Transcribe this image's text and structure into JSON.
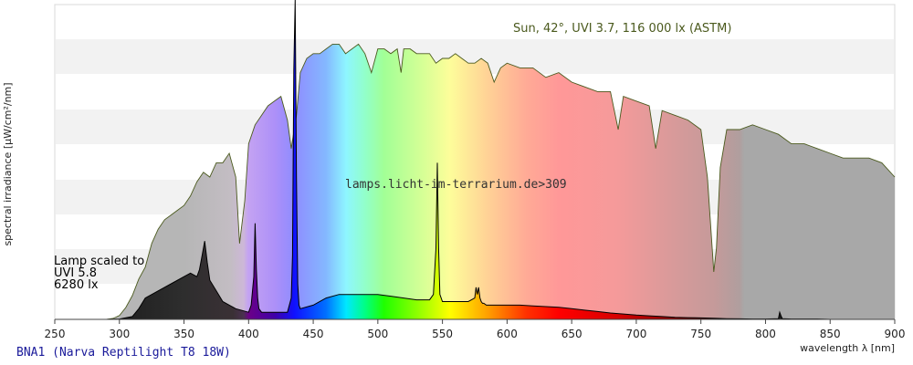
{
  "chart_data": {
    "type": "area",
    "title": "",
    "xlabel": "wavelength λ [nm]",
    "ylabel": "spectral irradiance [µW/cm²/nm]",
    "xlim": [
      250,
      900
    ],
    "x_ticks": [
      250,
      300,
      350,
      400,
      450,
      500,
      550,
      600,
      650,
      700,
      750,
      800,
      850,
      900
    ],
    "y_tick_labels": [],
    "grid": "horizontal bands",
    "colors": {
      "sun_line": "#4b5a1e",
      "lamp_fill": "#000000",
      "band": "#f2f2f2",
      "uv_gray": "#b0b0b0",
      "ir_gray": "#a8a8a8"
    },
    "annotations": {
      "sun": "Sun, 42°, UVI 3.7, 116 000 lx (ASTM)",
      "lamp": [
        "Lamp scaled to",
        "UVI 5.8",
        "6280 lx"
      ],
      "watermark": "lamps.licht-im-terrarium.de>309",
      "lamp_name": "BNA1 (Narva Reptilight T8 18W)"
    },
    "series": [
      {
        "name": "Sun, 42°, UVI 3.7, 116 000 lx (ASTM)",
        "x": [
          290,
          295,
          300,
          305,
          310,
          315,
          320,
          325,
          330,
          335,
          340,
          345,
          350,
          355,
          360,
          365,
          370,
          375,
          380,
          385,
          390,
          393,
          397,
          400,
          405,
          410,
          415,
          420,
          425,
          430,
          433,
          437,
          440,
          445,
          450,
          455,
          460,
          465,
          470,
          475,
          480,
          485,
          490,
          495,
          500,
          505,
          510,
          515,
          518,
          520,
          525,
          530,
          535,
          540,
          545,
          550,
          555,
          560,
          565,
          570,
          575,
          580,
          585,
          590,
          595,
          600,
          610,
          620,
          630,
          640,
          650,
          660,
          670,
          680,
          686,
          690,
          700,
          710,
          715,
          720,
          730,
          740,
          750,
          755,
          760,
          762,
          765,
          770,
          780,
          790,
          800,
          810,
          820,
          830,
          840,
          850,
          860,
          870,
          880,
          890,
          900
        ],
        "values": [
          0,
          0.2,
          0.8,
          2.5,
          5,
          8.5,
          11,
          16,
          19,
          21,
          22,
          23,
          24,
          26,
          29,
          31,
          30,
          33,
          33,
          35,
          30,
          16,
          25,
          37,
          41,
          43,
          45,
          46,
          47,
          42,
          36,
          43,
          52,
          55,
          56,
          56,
          57,
          58,
          58,
          56,
          57,
          58,
          56,
          52,
          57,
          57,
          56,
          57,
          52,
          57,
          57,
          56,
          56,
          56,
          54,
          55,
          55,
          56,
          55,
          54,
          54,
          55,
          54,
          50,
          53,
          54,
          53,
          53,
          51,
          52,
          50,
          49,
          48,
          48,
          40,
          47,
          46,
          45,
          36,
          44,
          43,
          42,
          40,
          30,
          10,
          15,
          32,
          40,
          40,
          41,
          40,
          39,
          37,
          37,
          36,
          35,
          34,
          34,
          34,
          33,
          30
        ]
      },
      {
        "name": "Lamp",
        "x": [
          290,
          300,
          310,
          315,
          320,
          330,
          340,
          350,
          355,
          360,
          362,
          364,
          366,
          368,
          370,
          375,
          380,
          390,
          400,
          402,
          404,
          405,
          406,
          407,
          408,
          410,
          420,
          430,
          433,
          434,
          435,
          436,
          437,
          438,
          439,
          440,
          450,
          460,
          470,
          480,
          490,
          500,
          510,
          520,
          530,
          540,
          543,
          545,
          546,
          547,
          548,
          550,
          560,
          570,
          575,
          576,
          577,
          578,
          579,
          580,
          581,
          582,
          584,
          590,
          600,
          610,
          620,
          630,
          640,
          650,
          660,
          670,
          680,
          690,
          700,
          710,
          720,
          730,
          740,
          750,
          760,
          770,
          780,
          790,
          800,
          810,
          811,
          812,
          813,
          820,
          830,
          840,
          850,
          860,
          870,
          880,
          890,
          900
        ],
        "values": [
          0,
          0.1,
          0.8,
          3,
          6,
          8,
          10,
          12,
          13,
          12,
          14,
          18,
          22,
          16,
          11,
          8,
          5,
          3,
          2,
          4,
          12,
          27,
          14,
          6,
          3,
          2,
          2,
          2,
          6,
          18,
          70,
          90,
          40,
          10,
          4,
          3,
          4,
          6,
          7,
          7,
          7,
          7,
          6.5,
          6,
          5.5,
          5.5,
          7,
          20,
          44,
          20,
          7,
          5,
          5,
          5,
          6,
          9,
          7,
          9,
          6,
          5,
          4.5,
          4.5,
          4,
          4,
          4,
          4,
          3.8,
          3.6,
          3.4,
          3,
          2.6,
          2.2,
          1.8,
          1.5,
          1.2,
          1,
          0.8,
          0.6,
          0.5,
          0.4,
          0.3,
          0.2,
          0.15,
          0.1,
          0.1,
          0.2,
          2,
          1,
          0.2,
          0.1,
          0.1,
          0.1,
          0,
          0,
          0,
          0,
          0,
          0
        ]
      }
    ]
  }
}
